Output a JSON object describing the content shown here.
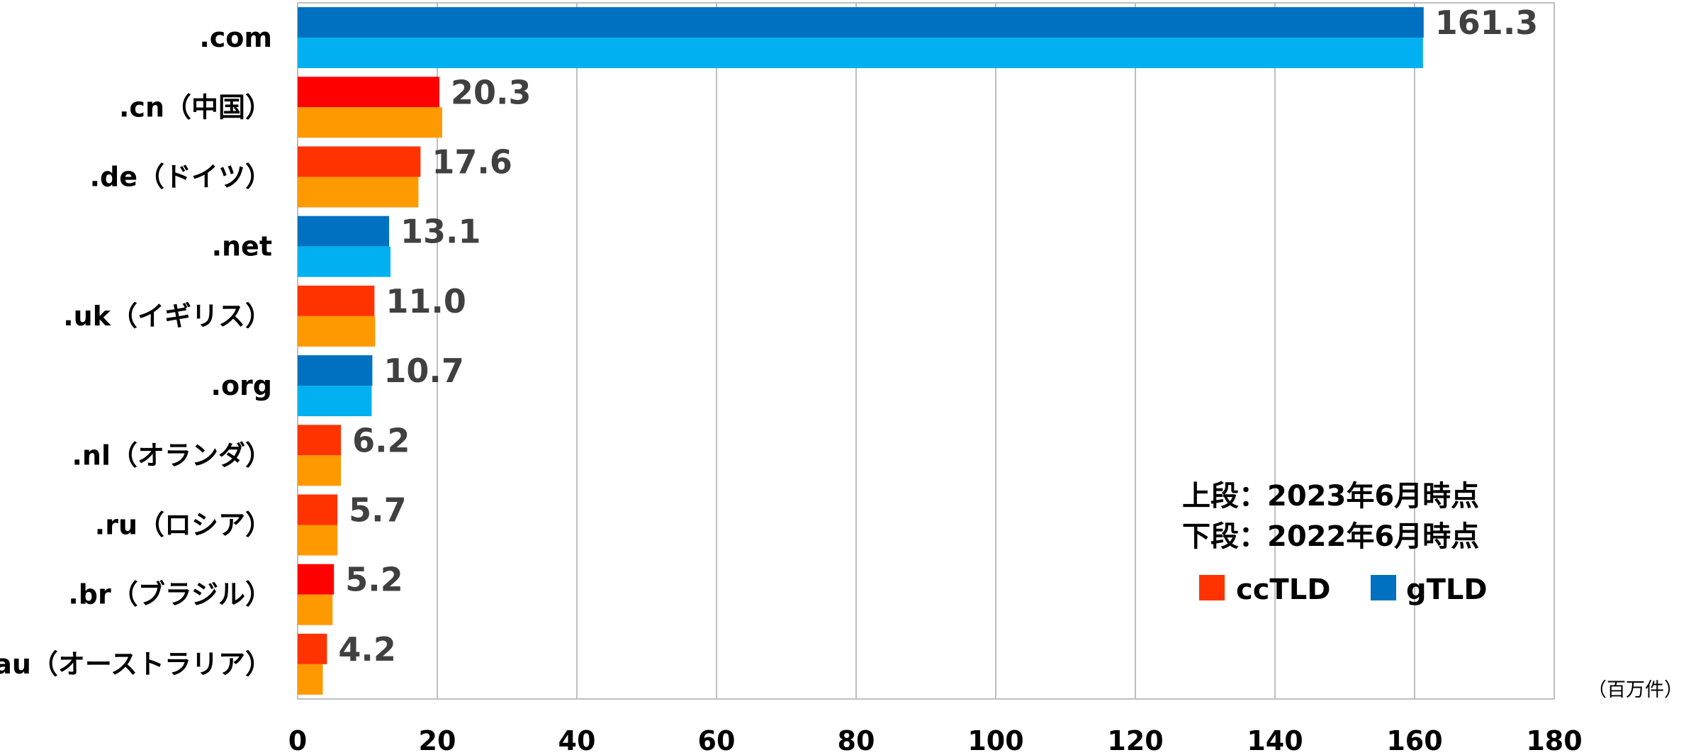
{
  "chart_data": {
    "type": "bar",
    "orientation": "horizontal",
    "categories": [
      ".com",
      ".cn（中国）",
      ".de（ドイツ）",
      ".net",
      ".uk（イギリス）",
      ".org",
      ".nl（オランダ）",
      ".ru（ロシア）",
      ".br（ブラジル）",
      ".au（オーストラリア）"
    ],
    "category_type": [
      "gTLD",
      "ccTLD",
      "ccTLD",
      "gTLD",
      "ccTLD",
      "gTLD",
      "ccTLD",
      "ccTLD",
      "ccTLD",
      "ccTLD"
    ],
    "series": [
      {
        "name": "上段：2023年6月時点",
        "values": [
          161.3,
          20.3,
          17.6,
          13.1,
          11.0,
          10.7,
          6.2,
          5.7,
          5.2,
          4.2
        ]
      },
      {
        "name": "下段：2022年6月時点",
        "values": [
          161.2,
          20.7,
          17.3,
          13.3,
          11.1,
          10.6,
          6.2,
          5.7,
          5.0,
          3.6
        ]
      }
    ],
    "value_labels": [
      "161.3",
      "20.3",
      "17.6",
      "13.1",
      "11.0",
      "10.7",
      "6.2",
      "5.7",
      "5.2",
      "4.2"
    ],
    "xlim": [
      0,
      180
    ],
    "x_ticks": [
      "0",
      "20",
      "40",
      "60",
      "80",
      "100",
      "120",
      "140",
      "160",
      "180"
    ],
    "x_tick_values": [
      0,
      20,
      40,
      60,
      80,
      100,
      120,
      140,
      160,
      180
    ],
    "unit": "（百万件）",
    "grid": true,
    "legend": {
      "position": "bottom-right",
      "notes": [
        "上段：2023年6月時点",
        "下段：2022年6月時点"
      ],
      "items": [
        {
          "label": "ccTLD",
          "color": "#FF3300"
        },
        {
          "label": "gTLD",
          "color": "#0070C0"
        }
      ]
    },
    "colors": {
      "gTLD_2023": "#0070C0",
      "gTLD_2022": "#00B0F0",
      "ccTLD_2023": "#FF3300",
      "ccTLD_2022": "#FF9900",
      "cn_2023": "#FF0000",
      "br_2023": "#FF0000"
    }
  }
}
